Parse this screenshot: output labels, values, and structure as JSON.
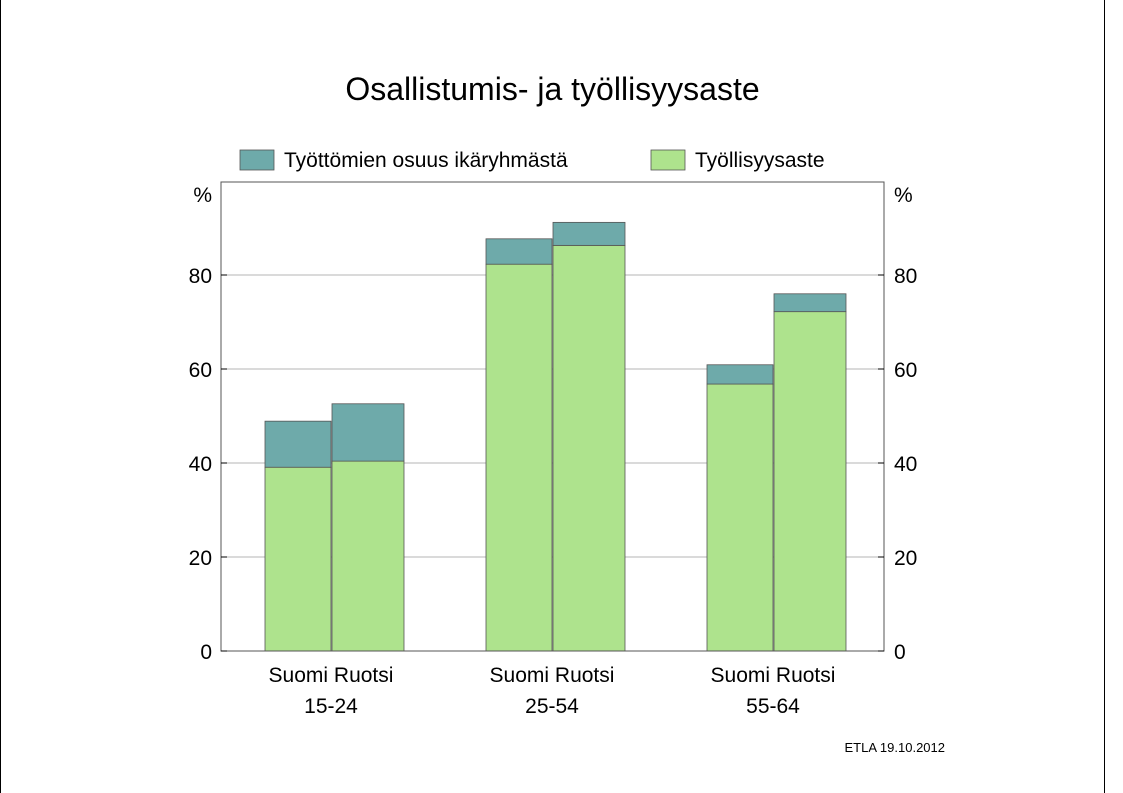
{
  "chart_data": {
    "type": "bar",
    "stacked": true,
    "title": "Osallistumis- ja työllisyysaste",
    "ylabel_left": "%",
    "ylabel_right": "%",
    "ylim": [
      0,
      100
    ],
    "yticks": [
      0,
      20,
      40,
      60,
      80
    ],
    "grid": true,
    "legend_position": "top",
    "groups": [
      "15-24",
      "25-54",
      "55-64"
    ],
    "bar_labels": [
      "Suomi",
      "Ruotsi"
    ],
    "categories": [
      "Suomi 15-24",
      "Ruotsi 15-24",
      "Suomi 25-54",
      "Ruotsi 25-54",
      "Suomi 55-64",
      "Ruotsi 55-64"
    ],
    "series": [
      {
        "name": "Työllisyysaste",
        "color": "#aee38d",
        "values": [
          39.1,
          40.4,
          82.3,
          86.3,
          56.8,
          72.2
        ]
      },
      {
        "name": "Työttömien osuus ikäryhmästä",
        "color": "#6eaaaa",
        "values": [
          9.8,
          12.2,
          5.4,
          4.9,
          4.1,
          3.8
        ]
      }
    ],
    "legend_order": [
      "Työttömien osuus ikäryhmästä",
      "Työllisyysaste"
    ]
  },
  "footer": {
    "source": "ETLA 19.10.2012"
  },
  "colors": {
    "employment": "#aee38d",
    "unemployment": "#6eaaaa",
    "grid": "#b4b4b4",
    "frame": "#555555"
  }
}
